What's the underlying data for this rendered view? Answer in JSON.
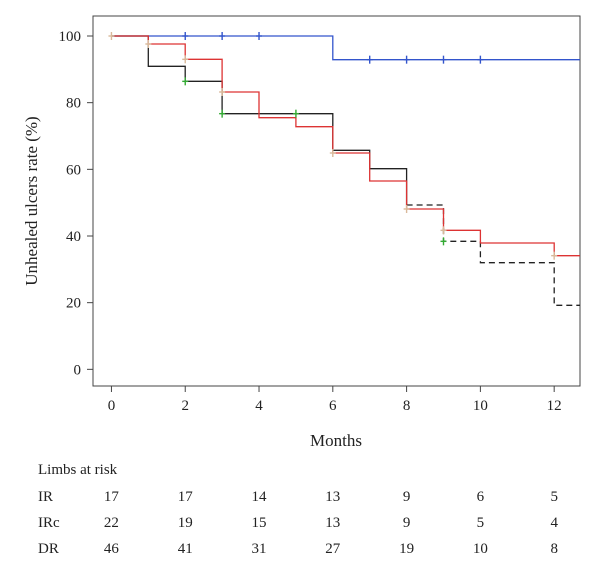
{
  "chart_data": {
    "type": "line",
    "step": true,
    "xlabel": "Months",
    "ylabel": "Unhealed ulcers rate (%)",
    "xlim": [
      -0.5,
      12.7
    ],
    "ylim": [
      -5,
      106
    ],
    "xticks": [
      0,
      2,
      4,
      6,
      8,
      10,
      12
    ],
    "yticks": [
      0,
      20,
      40,
      60,
      80,
      100
    ],
    "grid": false,
    "series": [
      {
        "color": "#3355cc",
        "dash": "",
        "points": [
          [
            0,
            100
          ],
          [
            6,
            100
          ],
          [
            6,
            92.9
          ],
          [
            12.7,
            92.9
          ]
        ],
        "censor": [
          [
            2,
            100
          ],
          [
            3,
            100
          ],
          [
            4,
            100
          ],
          [
            7,
            92.9
          ],
          [
            8,
            92.9
          ],
          [
            9,
            92.9
          ],
          [
            10,
            92.9
          ]
        ],
        "censor_color": "#3355cc"
      },
      {
        "color": "#222222",
        "dash": "",
        "points": [
          [
            0,
            100
          ],
          [
            1,
            100
          ],
          [
            1,
            90.9
          ],
          [
            2,
            90.9
          ],
          [
            2,
            86.4
          ],
          [
            3,
            86.4
          ],
          [
            3,
            76.7
          ],
          [
            6,
            76.7
          ],
          [
            6,
            65.7
          ],
          [
            7,
            65.7
          ],
          [
            7,
            60.2
          ],
          [
            8,
            60.2
          ],
          [
            8,
            49.3
          ]
        ],
        "censor": [
          [
            2,
            86.4
          ],
          [
            3,
            76.7
          ],
          [
            5,
            76.7
          ]
        ],
        "censor_color": "#33aa33"
      },
      {
        "color": "#222222",
        "dash": "6,4",
        "points": [
          [
            8,
            49.3
          ],
          [
            9,
            49.3
          ],
          [
            9,
            38.4
          ],
          [
            10,
            38.4
          ],
          [
            10,
            32.0
          ],
          [
            12,
            32.0
          ],
          [
            12,
            19.2
          ],
          [
            12.7,
            19.2
          ]
        ],
        "censor": [
          [
            9,
            38.4
          ]
        ],
        "censor_color": "#33aa33"
      },
      {
        "color": "#dd3333",
        "dash": "",
        "points": [
          [
            0,
            100
          ],
          [
            1,
            100
          ],
          [
            1,
            97.6
          ],
          [
            2,
            97.6
          ],
          [
            2,
            93.0
          ],
          [
            3,
            93.0
          ],
          [
            3,
            83.2
          ],
          [
            4,
            83.2
          ],
          [
            4,
            75.5
          ],
          [
            5,
            75.5
          ],
          [
            5,
            72.8
          ],
          [
            6,
            72.8
          ],
          [
            6,
            64.9
          ],
          [
            7,
            64.9
          ],
          [
            7,
            56.5
          ],
          [
            8,
            56.5
          ],
          [
            8,
            48.1
          ],
          [
            9,
            48.1
          ],
          [
            9,
            41.7
          ],
          [
            10,
            41.7
          ],
          [
            10,
            37.9
          ],
          [
            12,
            37.9
          ],
          [
            12,
            34.1
          ],
          [
            12.7,
            34.1
          ]
        ],
        "censor": [
          [
            0,
            100
          ],
          [
            1,
            97.6
          ],
          [
            2,
            93.0
          ],
          [
            3,
            83.2
          ],
          [
            6,
            64.9
          ],
          [
            8,
            48.1
          ],
          [
            9,
            41.7
          ],
          [
            12,
            34.1
          ]
        ],
        "censor_color": "#d9b99a"
      }
    ]
  },
  "risk_table": {
    "title": "Limbs at risk",
    "time_points": [
      0,
      2,
      4,
      6,
      8,
      10,
      12
    ],
    "rows": [
      {
        "label": "IR",
        "values": [
          "17",
          "17",
          "14",
          "13",
          "9",
          "6",
          "5"
        ]
      },
      {
        "label": "IRc",
        "values": [
          "22",
          "19",
          "15",
          "13",
          "9",
          "5",
          "4"
        ]
      },
      {
        "label": "DR",
        "values": [
          "46",
          "41",
          "31",
          "27",
          "19",
          "10",
          "8"
        ]
      }
    ]
  }
}
